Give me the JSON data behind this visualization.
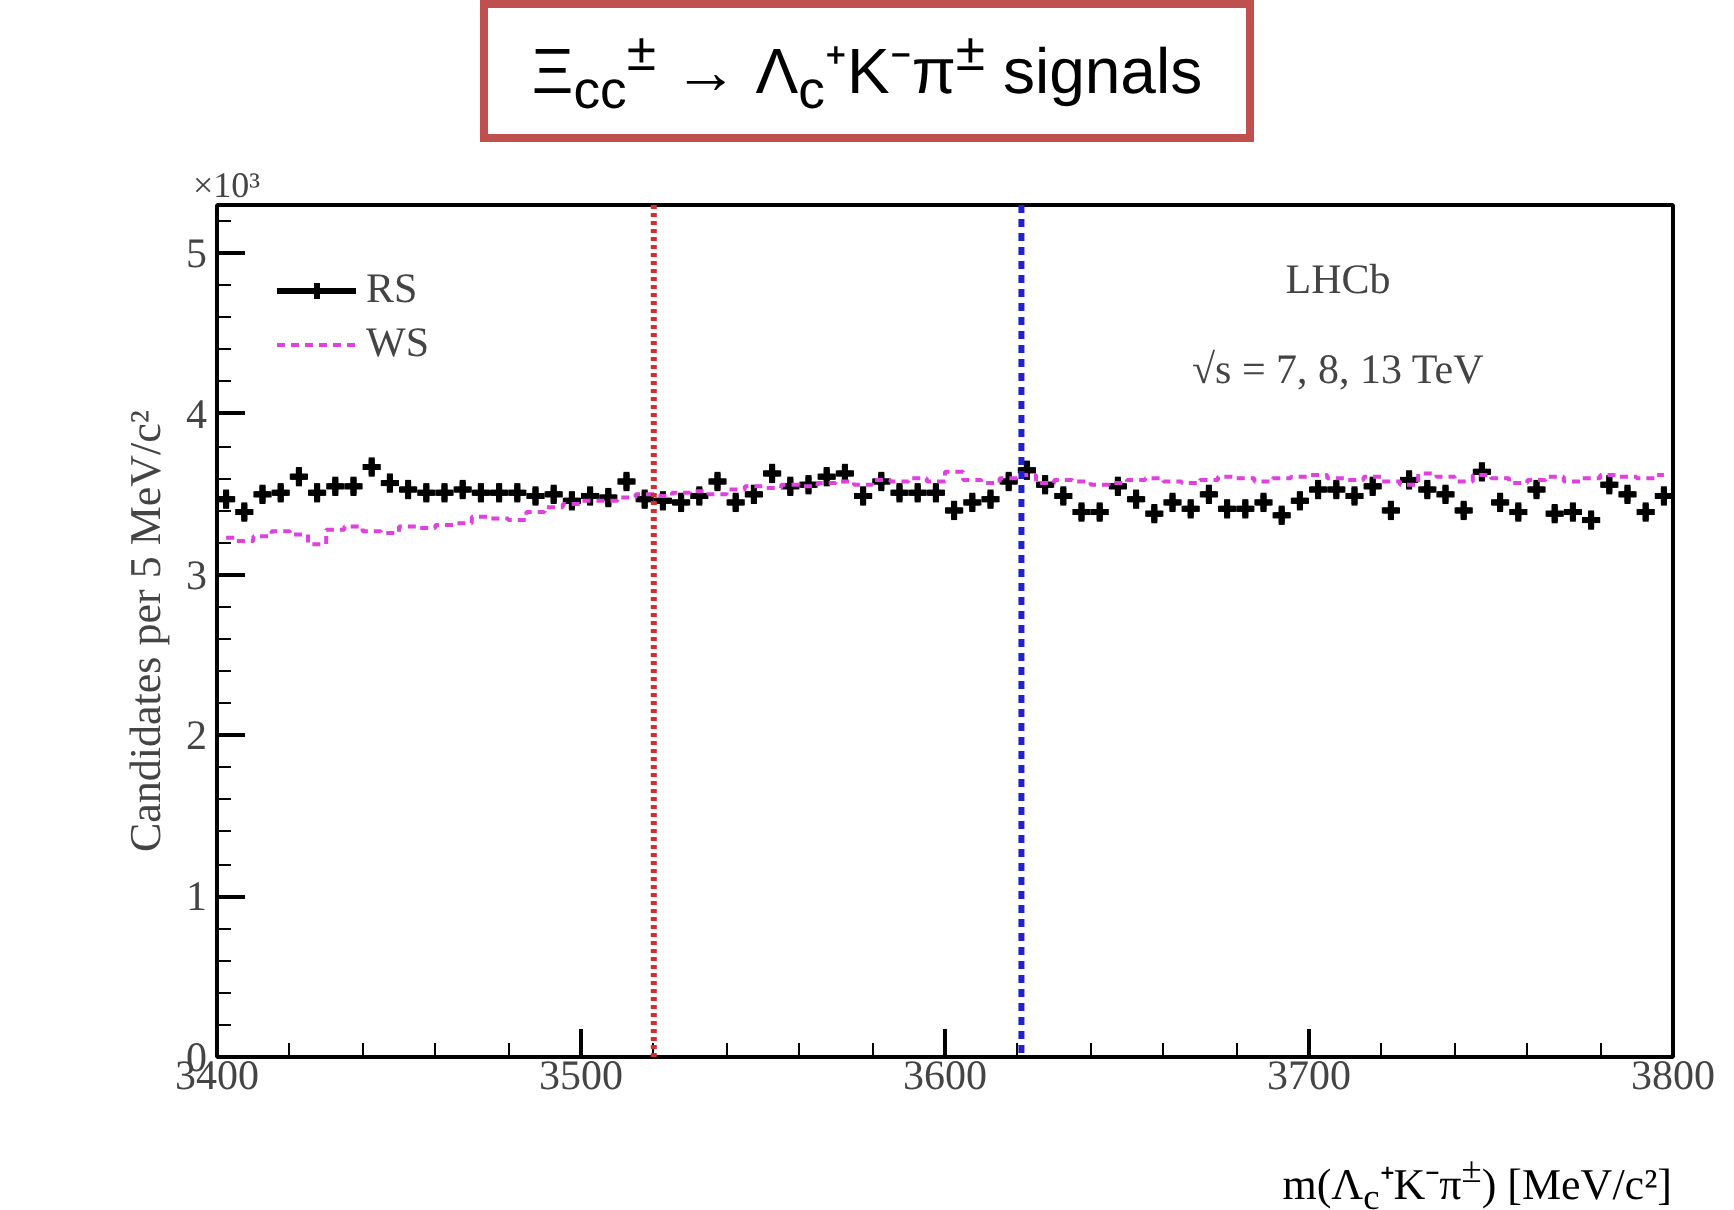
{
  "chart_data": {
    "type": "scatter",
    "title": "Ξ$_{cc}$$^{±}$ → Λ$_{c}$⁺K⁻π$^{±}$ signals",
    "xlabel": "m(Λ$_{c}$⁺K⁻π$^{±}$) [MeV/c²]",
    "ylabel": "Candidates per 5 MeV/c²",
    "annotations": [
      "×10³",
      "LHCb",
      "√s = 7, 8, 13 TeV"
    ],
    "xlim": [
      3400,
      3800
    ],
    "xticks": [
      3400,
      3500,
      3600,
      3700,
      3800
    ],
    "ylim": [
      0,
      5.3
    ],
    "yticks": [
      0,
      1,
      2,
      3,
      4,
      5
    ],
    "grid": false,
    "legend": "top left",
    "series": [
      {
        "name": "RS",
        "marker": "cross",
        "color": "#000000",
        "x": [
          3402.5,
          3407.5,
          3412.5,
          3417.5,
          3422.5,
          3427.5,
          3432.5,
          3437.5,
          3442.5,
          3447.5,
          3452.5,
          3457.5,
          3462.5,
          3467.5,
          3472.5,
          3477.5,
          3482.5,
          3487.5,
          3492.5,
          3497.5,
          3502.5,
          3507.5,
          3512.5,
          3517.5,
          3522.5,
          3527.5,
          3532.5,
          3537.5,
          3542.5,
          3547.5,
          3552.5,
          3557.5,
          3562.5,
          3567.5,
          3572.5,
          3577.5,
          3582.5,
          3587.5,
          3592.5,
          3597.5,
          3602.5,
          3607.5,
          3612.5,
          3617.5,
          3622.5,
          3627.5,
          3632.5,
          3637.5,
          3642.5,
          3647.5,
          3652.5,
          3657.5,
          3662.5,
          3667.5,
          3672.5,
          3677.5,
          3682.5,
          3687.5,
          3692.5,
          3697.5,
          3702.5,
          3707.5,
          3712.5,
          3717.5,
          3722.5,
          3727.5,
          3732.5,
          3737.5,
          3742.5,
          3747.5,
          3752.5,
          3757.5,
          3762.5,
          3767.5,
          3772.5,
          3777.5,
          3782.5,
          3787.5,
          3792.5,
          3797.5
        ],
        "values": [
          3.47,
          3.39,
          3.5,
          3.51,
          3.61,
          3.51,
          3.55,
          3.55,
          3.67,
          3.57,
          3.53,
          3.51,
          3.51,
          3.53,
          3.51,
          3.51,
          3.51,
          3.49,
          3.5,
          3.46,
          3.49,
          3.48,
          3.58,
          3.47,
          3.46,
          3.45,
          3.49,
          3.58,
          3.45,
          3.5,
          3.63,
          3.55,
          3.56,
          3.61,
          3.63,
          3.49,
          3.58,
          3.51,
          3.51,
          3.51,
          3.4,
          3.45,
          3.47,
          3.58,
          3.65,
          3.56,
          3.49,
          3.39,
          3.39,
          3.55,
          3.47,
          3.38,
          3.45,
          3.41,
          3.5,
          3.41,
          3.41,
          3.45,
          3.37,
          3.46,
          3.53,
          3.53,
          3.49,
          3.55,
          3.4,
          3.59,
          3.53,
          3.5,
          3.4,
          3.64,
          3.45,
          3.39,
          3.53,
          3.38,
          3.39,
          3.34,
          3.56,
          3.5,
          3.39,
          3.49
        ],
        "errors": [
          0.06,
          0.06,
          0.06,
          0.06,
          0.06,
          0.06,
          0.06,
          0.06,
          0.06,
          0.06,
          0.06,
          0.06,
          0.06,
          0.06,
          0.06,
          0.06,
          0.06,
          0.06,
          0.06,
          0.06,
          0.06,
          0.06,
          0.06,
          0.06,
          0.06,
          0.06,
          0.06,
          0.06,
          0.06,
          0.06,
          0.06,
          0.06,
          0.06,
          0.06,
          0.06,
          0.06,
          0.06,
          0.06,
          0.06,
          0.06,
          0.06,
          0.06,
          0.06,
          0.06,
          0.06,
          0.06,
          0.06,
          0.06,
          0.06,
          0.06,
          0.06,
          0.06,
          0.06,
          0.06,
          0.06,
          0.06,
          0.06,
          0.06,
          0.06,
          0.06,
          0.06,
          0.06,
          0.06,
          0.06,
          0.06,
          0.06,
          0.06,
          0.06,
          0.06,
          0.06,
          0.06,
          0.06,
          0.06,
          0.06,
          0.06,
          0.06,
          0.06,
          0.06,
          0.06,
          0.06
        ],
        "xerrors": [
          2.5,
          2.5,
          2.5,
          2.5,
          2.5,
          2.5,
          2.5,
          2.5,
          2.5,
          2.5,
          2.5,
          2.5,
          2.5,
          2.5,
          2.5,
          2.5,
          2.5,
          2.5,
          2.5,
          2.5,
          2.5,
          2.5,
          2.5,
          2.5,
          2.5,
          2.5,
          2.5,
          2.5,
          2.5,
          2.5,
          2.5,
          2.5,
          2.5,
          2.5,
          2.5,
          2.5,
          2.5,
          2.5,
          2.5,
          2.5,
          2.5,
          2.5,
          2.5,
          2.5,
          2.5,
          2.5,
          2.5,
          2.5,
          2.5,
          2.5,
          2.5,
          2.5,
          2.5,
          2.5,
          2.5,
          2.5,
          2.5,
          2.5,
          2.5,
          2.5,
          2.5,
          2.5,
          2.5,
          2.5,
          2.5,
          2.5,
          2.5,
          2.5,
          2.5,
          2.5,
          2.5,
          2.5,
          2.5,
          2.5,
          2.5,
          2.5,
          2.5,
          2.5,
          2.5,
          2.5
        ]
      },
      {
        "name": "WS",
        "type": "step",
        "line_style": "dashed",
        "color": "#e040e0",
        "x": [
          3402.5,
          3407.5,
          3412.5,
          3417.5,
          3422.5,
          3427.5,
          3432.5,
          3437.5,
          3442.5,
          3447.5,
          3452.5,
          3457.5,
          3462.5,
          3467.5,
          3472.5,
          3477.5,
          3482.5,
          3487.5,
          3492.5,
          3497.5,
          3502.5,
          3507.5,
          3512.5,
          3517.5,
          3522.5,
          3527.5,
          3532.5,
          3537.5,
          3542.5,
          3547.5,
          3552.5,
          3557.5,
          3562.5,
          3567.5,
          3572.5,
          3577.5,
          3582.5,
          3587.5,
          3592.5,
          3597.5,
          3602.5,
          3607.5,
          3612.5,
          3617.5,
          3622.5,
          3627.5,
          3632.5,
          3637.5,
          3642.5,
          3647.5,
          3652.5,
          3657.5,
          3662.5,
          3667.5,
          3672.5,
          3677.5,
          3682.5,
          3687.5,
          3692.5,
          3697.5,
          3702.5,
          3707.5,
          3712.5,
          3717.5,
          3722.5,
          3727.5,
          3732.5,
          3737.5,
          3742.5,
          3747.5,
          3752.5,
          3757.5,
          3762.5,
          3767.5,
          3772.5,
          3777.5,
          3782.5,
          3787.5,
          3792.5,
          3797.5
        ],
        "values": [
          3.23,
          3.21,
          3.24,
          3.27,
          3.25,
          3.19,
          3.28,
          3.3,
          3.27,
          3.26,
          3.3,
          3.29,
          3.31,
          3.32,
          3.36,
          3.35,
          3.34,
          3.39,
          3.42,
          3.44,
          3.46,
          3.46,
          3.48,
          3.5,
          3.49,
          3.51,
          3.52,
          3.5,
          3.53,
          3.55,
          3.54,
          3.56,
          3.55,
          3.57,
          3.58,
          3.56,
          3.59,
          3.58,
          3.6,
          3.58,
          3.64,
          3.59,
          3.57,
          3.6,
          3.62,
          3.57,
          3.59,
          3.58,
          3.56,
          3.57,
          3.59,
          3.6,
          3.58,
          3.57,
          3.59,
          3.61,
          3.6,
          3.58,
          3.6,
          3.61,
          3.62,
          3.6,
          3.59,
          3.61,
          3.58,
          3.56,
          3.63,
          3.61,
          3.58,
          3.62,
          3.6,
          3.57,
          3.59,
          3.61,
          3.58,
          3.6,
          3.62,
          3.61,
          3.6,
          3.62
        ]
      }
    ],
    "ref_lines": [
      {
        "axis": "x",
        "value": 3520,
        "color": "#d03030",
        "line_style": "dotted"
      },
      {
        "axis": "x",
        "value": 3621,
        "color": "#2020d0",
        "line_style": "dashed"
      }
    ]
  }
}
